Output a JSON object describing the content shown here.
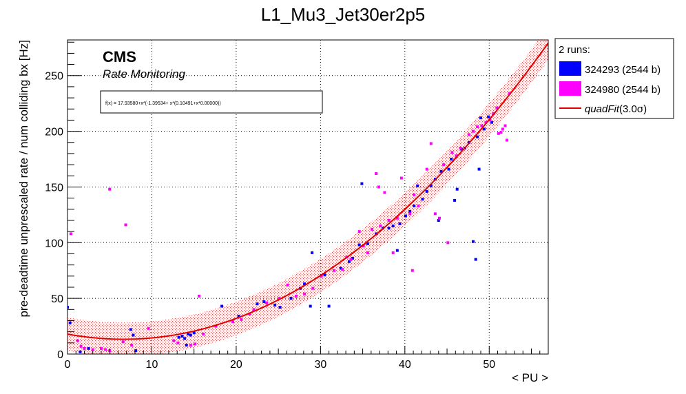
{
  "chart_data": {
    "type": "scatter",
    "title": "L1_Mu3_Jet30er2p5",
    "xlabel": "< PU >",
    "ylabel": "pre-deadtime unprescaled rate / num colliding bx [Hz]",
    "xlim": [
      0,
      57
    ],
    "ylim": [
      0,
      282
    ],
    "x_ticks": [
      0,
      10,
      20,
      30,
      40,
      50
    ],
    "y_ticks": [
      0,
      50,
      100,
      150,
      200,
      250
    ],
    "grid": true,
    "legend_position": "outside-right-top",
    "cms_label": "CMS",
    "cms_sublabel": "Rate Monitoring",
    "formula": "f(x) = 17.93580+x*(-1.39534+ x*(0.10491+x*0.00000))",
    "legend_header": "2 runs:",
    "fit": {
      "name": "quadFit(3.0σ)",
      "legend_label_main": "quadFit",
      "legend_label_suffix": "(3.0σ)",
      "coefficients": [
        17.9358,
        -1.39534,
        0.10491,
        0.0
      ],
      "band_sigma": 3.0,
      "band_halfwidth": 15,
      "color": "#dd0000"
    },
    "series": [
      {
        "name": "324293 (2544 b)",
        "color": "#0000ff",
        "points": [
          [
            0,
            42
          ],
          [
            0.3,
            28
          ],
          [
            1.5,
            2
          ],
          [
            2.5,
            5
          ],
          [
            7.5,
            22
          ],
          [
            7.8,
            17
          ],
          [
            8.1,
            3
          ],
          [
            13.2,
            15
          ],
          [
            13.6,
            16
          ],
          [
            13.9,
            14
          ],
          [
            14.1,
            8
          ],
          [
            14.3,
            18
          ],
          [
            14.6,
            17
          ],
          [
            15.0,
            19
          ],
          [
            18.3,
            43
          ],
          [
            20.3,
            34
          ],
          [
            22.5,
            45
          ],
          [
            23.3,
            47
          ],
          [
            24.6,
            44
          ],
          [
            25.2,
            42
          ],
          [
            26.5,
            50
          ],
          [
            27.6,
            59
          ],
          [
            28.1,
            63
          ],
          [
            28.8,
            43
          ],
          [
            29.0,
            91
          ],
          [
            30.5,
            71
          ],
          [
            31.0,
            43
          ],
          [
            32.4,
            77
          ],
          [
            33.4,
            83
          ],
          [
            33.8,
            86
          ],
          [
            34.6,
            98
          ],
          [
            34.9,
            153
          ],
          [
            35.6,
            99
          ],
          [
            36.6,
            108
          ],
          [
            37.4,
            113
          ],
          [
            38.1,
            113
          ],
          [
            38.6,
            115
          ],
          [
            39.1,
            93
          ],
          [
            39.4,
            117
          ],
          [
            40.1,
            124
          ],
          [
            40.6,
            128
          ],
          [
            41.1,
            133
          ],
          [
            41.5,
            151
          ],
          [
            42.1,
            139
          ],
          [
            42.6,
            146
          ],
          [
            43.1,
            151
          ],
          [
            43.6,
            157
          ],
          [
            44.0,
            120
          ],
          [
            44.3,
            164
          ],
          [
            45.2,
            166
          ],
          [
            45.5,
            175
          ],
          [
            45.9,
            138
          ],
          [
            46.2,
            148
          ],
          [
            46.7,
            184
          ],
          [
            47.1,
            185
          ],
          [
            47.6,
            190
          ],
          [
            48.1,
            101
          ],
          [
            48.6,
            195
          ],
          [
            48.4,
            85
          ],
          [
            48.8,
            166
          ],
          [
            49.0,
            212
          ],
          [
            49.4,
            202
          ],
          [
            49.9,
            213
          ],
          [
            50.3,
            208
          ]
        ]
      },
      {
        "name": "324980 (2544 b)",
        "color": "#ff00ff",
        "points": [
          [
            0.4,
            108
          ],
          [
            1.2,
            12
          ],
          [
            1.6,
            7
          ],
          [
            2.0,
            5
          ],
          [
            3.0,
            4
          ],
          [
            4.0,
            5
          ],
          [
            4.5,
            4
          ],
          [
            5.0,
            3
          ],
          [
            5.0,
            148
          ],
          [
            6.6,
            11
          ],
          [
            6.9,
            116
          ],
          [
            7.6,
            8
          ],
          [
            9.6,
            23
          ],
          [
            12.6,
            12
          ],
          [
            13.1,
            10
          ],
          [
            14.6,
            8
          ],
          [
            15.1,
            9
          ],
          [
            15.6,
            52
          ],
          [
            16.1,
            18
          ],
          [
            17.6,
            25
          ],
          [
            19.6,
            29
          ],
          [
            20.6,
            31
          ],
          [
            21.6,
            36
          ],
          [
            22.1,
            40
          ],
          [
            23.6,
            46
          ],
          [
            25.1,
            50
          ],
          [
            26.1,
            62
          ],
          [
            27.1,
            52
          ],
          [
            28.1,
            54
          ],
          [
            29.1,
            59
          ],
          [
            30.1,
            70
          ],
          [
            31.6,
            75
          ],
          [
            32.6,
            76
          ],
          [
            33.1,
            87
          ],
          [
            33.6,
            85
          ],
          [
            34.6,
            110
          ],
          [
            35.1,
            97
          ],
          [
            35.6,
            91
          ],
          [
            36.1,
            112
          ],
          [
            36.6,
            162
          ],
          [
            36.9,
            150
          ],
          [
            37.1,
            115
          ],
          [
            37.6,
            145
          ],
          [
            38.1,
            120
          ],
          [
            38.6,
            91
          ],
          [
            39.1,
            122
          ],
          [
            39.6,
            158
          ],
          [
            40.6,
            126
          ],
          [
            40.9,
            75
          ],
          [
            41.1,
            143
          ],
          [
            41.6,
            133
          ],
          [
            42.6,
            166
          ],
          [
            43.1,
            189
          ],
          [
            43.6,
            126
          ],
          [
            44.1,
            122
          ],
          [
            44.6,
            170
          ],
          [
            45.1,
            100
          ],
          [
            45.6,
            181
          ],
          [
            46.1,
            178
          ],
          [
            46.6,
            185
          ],
          [
            47.6,
            197
          ],
          [
            48.1,
            200
          ],
          [
            48.6,
            204
          ],
          [
            49.1,
            205
          ],
          [
            49.6,
            208
          ],
          [
            50.1,
            210
          ],
          [
            50.5,
            216
          ],
          [
            50.9,
            221
          ],
          [
            51.1,
            198
          ],
          [
            51.4,
            199
          ],
          [
            51.6,
            202
          ],
          [
            51.9,
            205
          ],
          [
            52.1,
            192
          ],
          [
            52.4,
            234
          ]
        ]
      }
    ]
  }
}
